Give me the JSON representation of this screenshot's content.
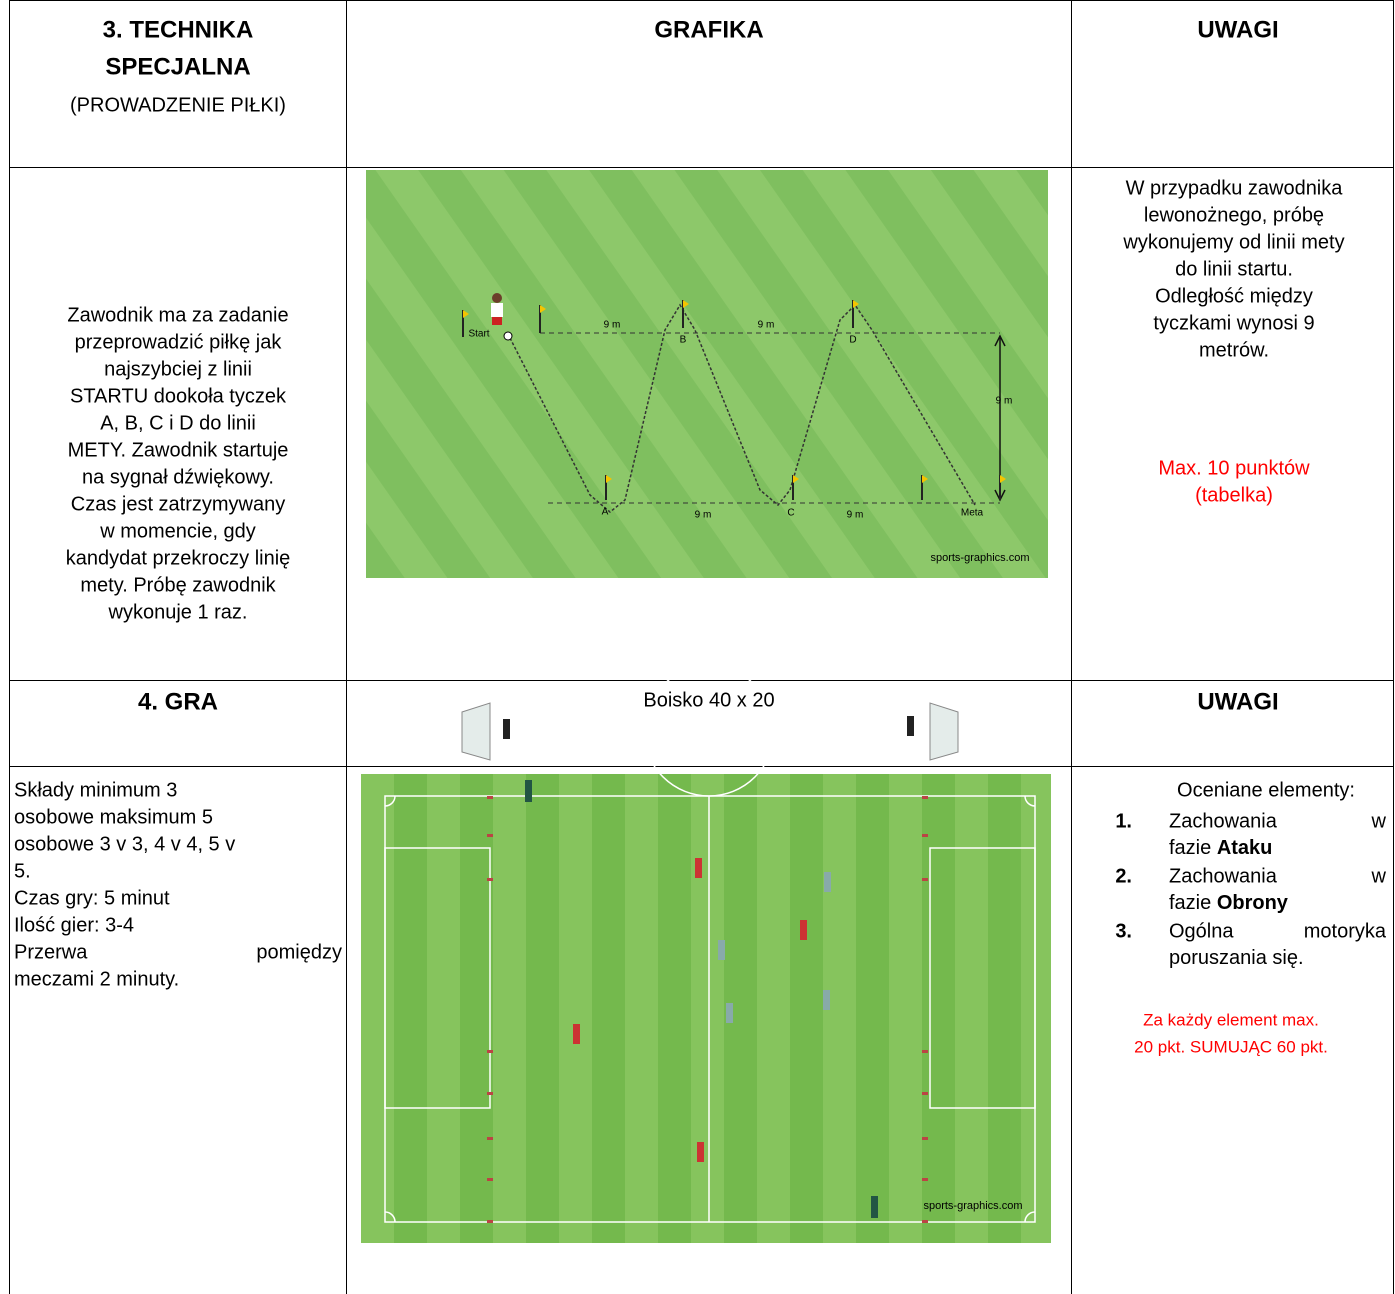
{
  "section3": {
    "title_lines": [
      "3. TECHNIKA",
      "SPECJALNA"
    ],
    "subtitle": "(PROWADZENIE PIŁKI)",
    "graphic_header": "GRAFIKA",
    "notes_header": "UWAGI",
    "description": [
      "Zawodnik ma za zadanie",
      "przeprowadzić piłkę jak",
      "najszybciej z linii",
      "STARTU dookoła tyczek",
      "A, B, C i D do linii",
      "METY. Zawodnik startuje",
      "na sygnał dźwiękowy.",
      "Czas jest zatrzymywany",
      "w momencie, gdy",
      "kandydat przekroczy linię",
      "mety. Próbę zawodnik",
      "wykonuje 1 raz."
    ],
    "diagram": {
      "start": "Start",
      "distance": "9 m",
      "poles": [
        "A",
        "B",
        "C",
        "D"
      ],
      "finish": "Meta",
      "watermark": "sports-graphics.com"
    },
    "notes": [
      "W przypadku zawodnika",
      "lewonożnego, próbę",
      "wykonujemy od linii mety",
      "do linii startu.",
      "Odległość między",
      "tyczkami wynosi  9",
      "metrów."
    ],
    "score": [
      "Max. 10 punktów",
      "(tabelka)"
    ]
  },
  "section4": {
    "title": "4. GRA",
    "field": "Boisko 40 x 20",
    "notes_header": "UWAGI",
    "rules": [
      "Składy minimum 3",
      "osobowe maksimum 5",
      "osobowe 3 v 3, 4 v 4, 5 v",
      "5.",
      "Czas gry: 5 minut",
      "Ilość gier: 3-4",
      [
        "Przerwa",
        "pomiędzy"
      ],
      "meczami 2 minuty."
    ],
    "criteria_intro": "Oceniane elementy:",
    "criteria": [
      {
        "number": "1.",
        "line1": [
          "Zachowania",
          "w"
        ],
        "line2": [
          "fazie ",
          "Ataku"
        ]
      },
      {
        "number": "2.",
        "line1": [
          "Zachowania",
          "w"
        ],
        "line2": [
          "fazie ",
          "Obrony"
        ]
      },
      {
        "number": "3.",
        "line1": [
          "Ogólna",
          "motoryka"
        ],
        "line2": [
          "poruszania się."
        ]
      }
    ],
    "score": [
      "Za każdy element max.",
      "20 pkt. SUMUJĄC 60 pkt."
    ],
    "watermark": "sports-graphics.com"
  }
}
